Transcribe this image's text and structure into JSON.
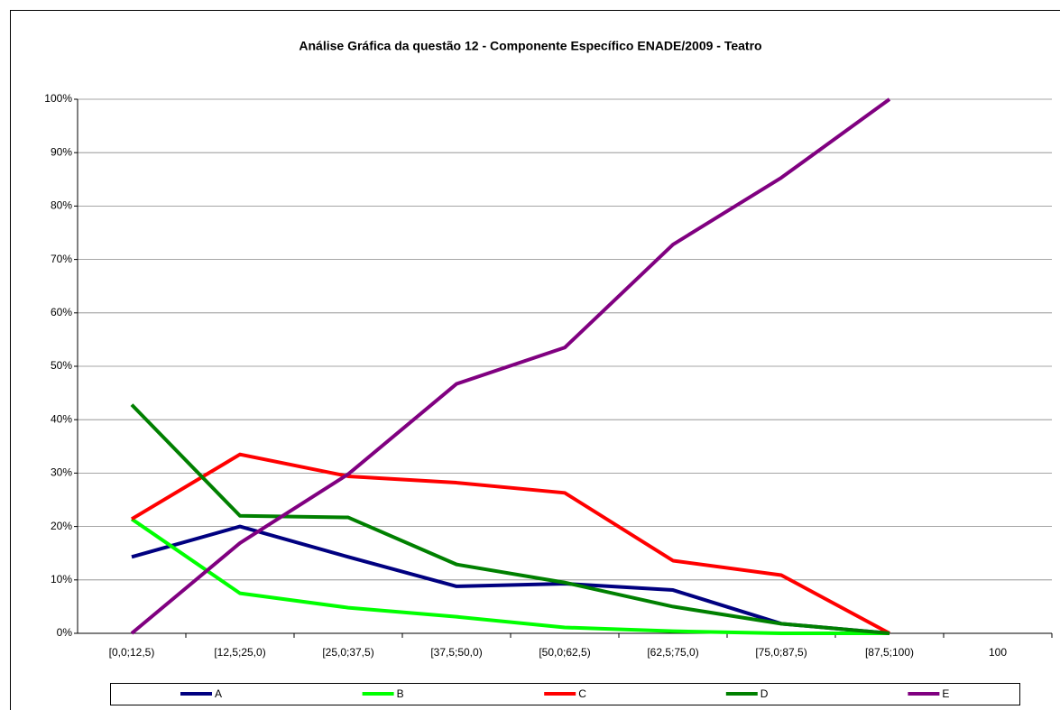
{
  "chart_data": {
    "type": "line",
    "title": "Análise Gráfica da questão 12 - Componente Específico ENADE/2009 - Teatro",
    "categories": [
      "[0,0;12,5)",
      "[12,5;25,0)",
      "[25,0;37,5)",
      "[37,5;50,0)",
      "[50,0;62,5)",
      "[62,5;75,0)",
      "[75,0;87,5)",
      "[87,5;100)",
      "100"
    ],
    "series": [
      {
        "name": "A",
        "color": "#000080",
        "values": [
          14.3,
          20,
          14.3,
          8.8,
          9.3,
          8.1,
          1.8,
          0,
          null
        ]
      },
      {
        "name": "B",
        "color": "#00ff00",
        "values": [
          21.4,
          7.5,
          4.8,
          3.1,
          1.1,
          0.4,
          0,
          0,
          null
        ]
      },
      {
        "name": "C",
        "color": "#ff0000",
        "values": [
          21.4,
          33.5,
          29.4,
          28.2,
          26.3,
          13.6,
          10.9,
          0,
          null
        ]
      },
      {
        "name": "D",
        "color": "#008000",
        "values": [
          42.8,
          22,
          21.7,
          12.9,
          9.5,
          5,
          1.8,
          0,
          null
        ]
      },
      {
        "name": "E",
        "color": "#800080",
        "values": [
          0,
          16.9,
          29.8,
          46.7,
          53.5,
          72.8,
          85.3,
          100,
          null
        ]
      }
    ],
    "ylim": [
      0,
      100
    ],
    "yticks": [
      {
        "value": 0,
        "label": "0%"
      },
      {
        "value": 10,
        "label": "10%"
      },
      {
        "value": 20,
        "label": "20%"
      },
      {
        "value": 30,
        "label": "30%"
      },
      {
        "value": 40,
        "label": "40%"
      },
      {
        "value": 50,
        "label": "50%"
      },
      {
        "value": 60,
        "label": "60%"
      },
      {
        "value": 70,
        "label": "70%"
      },
      {
        "value": 80,
        "label": "80%"
      },
      {
        "value": 90,
        "label": "90%"
      },
      {
        "value": 100,
        "label": "100%"
      }
    ],
    "grid": true,
    "legend": "bottom"
  }
}
